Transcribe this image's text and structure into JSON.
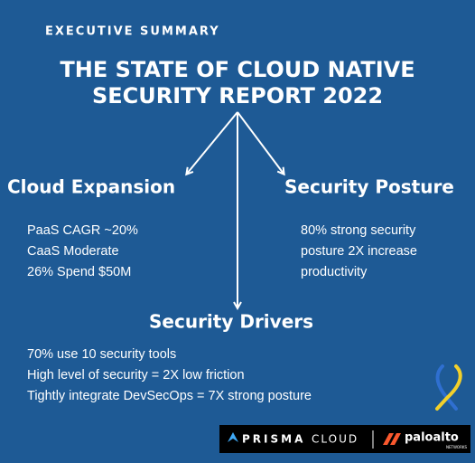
{
  "header": {
    "kicker": "EXECUTIVE SUMMARY",
    "title": [
      "THE STATE OF CLOUD NATIVE",
      "SECURITY REPORT 2022"
    ]
  },
  "nodes": [
    {
      "label": "Cloud Expansion",
      "lines": [
        "PaaS CAGR ~20%",
        "CaaS Moderate",
        "26% Spend $50M"
      ]
    },
    {
      "label": "Security Posture",
      "lines": [
        "80% strong security",
        "posture 2X increase",
        "productivity"
      ]
    },
    {
      "label": "Security Drivers",
      "lines": [
        "70% use 10 security tools",
        "High level of security = 2X low friction",
        "Tightly integrate DevSecOps = 7X strong posture"
      ]
    }
  ],
  "logos": {
    "prisma": "PRISMA",
    "cloud": "CLOUD",
    "paloalto": "paloalto",
    "networks": "NETWORKS"
  }
}
